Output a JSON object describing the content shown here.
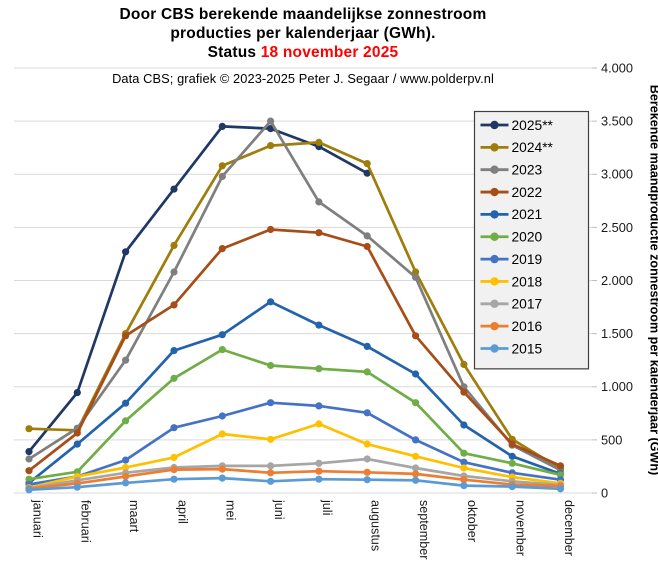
{
  "title": {
    "line1": "Door CBS berekende maandelijkse  zonnestroom",
    "line2": "producties per kalenderjaar (GWh).",
    "status_prefix": "Status ",
    "status_date": "18 november 2025",
    "status_color": "#ff0000"
  },
  "subtitle": "Data CBS;  grafiek © 2023-2025  Peter J. Segaar / www.polderpv.nl",
  "chart_data": {
    "type": "line",
    "categories": [
      "januari",
      "februari",
      "maart",
      "april",
      "mei",
      "juni",
      "juli",
      "augustus",
      "september",
      "oktober",
      "november",
      "december"
    ],
    "ylabel": "Berekende maandproductie zonnestroom per kalenderjaar (GWh)",
    "ylim": [
      0,
      4000
    ],
    "ytick_step": 500,
    "ytick_labels": [
      "0",
      "500",
      "1.000",
      "1.500",
      "2.000",
      "2.500",
      "3.000",
      "3.500",
      "4.000"
    ],
    "grid": true,
    "grid_color": "#d9d9d9",
    "legend_position": "inside-right",
    "legend_bg": "#f1f1f1",
    "legend_border": "#404040",
    "series": [
      {
        "name": "2025**",
        "color": "#1F3864",
        "values": [
          390,
          945,
          2270,
          2860,
          3450,
          3430,
          3260,
          3010,
          null,
          null,
          null,
          null
        ]
      },
      {
        "name": "2024**",
        "color": "#9E7D0B",
        "values": [
          605,
          590,
          1500,
          2330,
          3080,
          3270,
          3300,
          3100,
          2080,
          1210,
          505,
          230
        ]
      },
      {
        "name": "2023",
        "color": "#7F7F7F",
        "values": [
          320,
          610,
          1250,
          2080,
          2980,
          3500,
          2740,
          2420,
          2030,
          1000,
          450,
          215
        ]
      },
      {
        "name": "2022",
        "color": "#A64D18",
        "values": [
          210,
          565,
          1480,
          1770,
          2300,
          2480,
          2450,
          2320,
          1480,
          950,
          460,
          255
        ]
      },
      {
        "name": "2021",
        "color": "#2363AC",
        "values": [
          95,
          460,
          845,
          1340,
          1490,
          1800,
          1580,
          1380,
          1120,
          640,
          345,
          180
        ]
      },
      {
        "name": "2020",
        "color": "#70AD47",
        "values": [
          130,
          200,
          680,
          1080,
          1350,
          1200,
          1170,
          1140,
          850,
          375,
          280,
          170
        ]
      },
      {
        "name": "2019",
        "color": "#4472C4",
        "values": [
          80,
          155,
          310,
          615,
          725,
          850,
          820,
          755,
          500,
          290,
          190,
          125
        ]
      },
      {
        "name": "2018",
        "color": "#FFC000",
        "values": [
          50,
          155,
          240,
          335,
          555,
          505,
          650,
          460,
          345,
          235,
          150,
          90
        ]
      },
      {
        "name": "2017",
        "color": "#A6A6A6",
        "values": [
          45,
          120,
          190,
          240,
          255,
          255,
          280,
          320,
          235,
          160,
          110,
          75
        ]
      },
      {
        "name": "2016",
        "color": "#ED7D31",
        "values": [
          40,
          90,
          155,
          220,
          225,
          190,
          205,
          195,
          180,
          125,
          80,
          65
        ]
      },
      {
        "name": "2015",
        "color": "#5B9BD5",
        "values": [
          30,
          55,
          95,
          130,
          140,
          110,
          130,
          125,
          120,
          70,
          60,
          40
        ]
      }
    ]
  }
}
